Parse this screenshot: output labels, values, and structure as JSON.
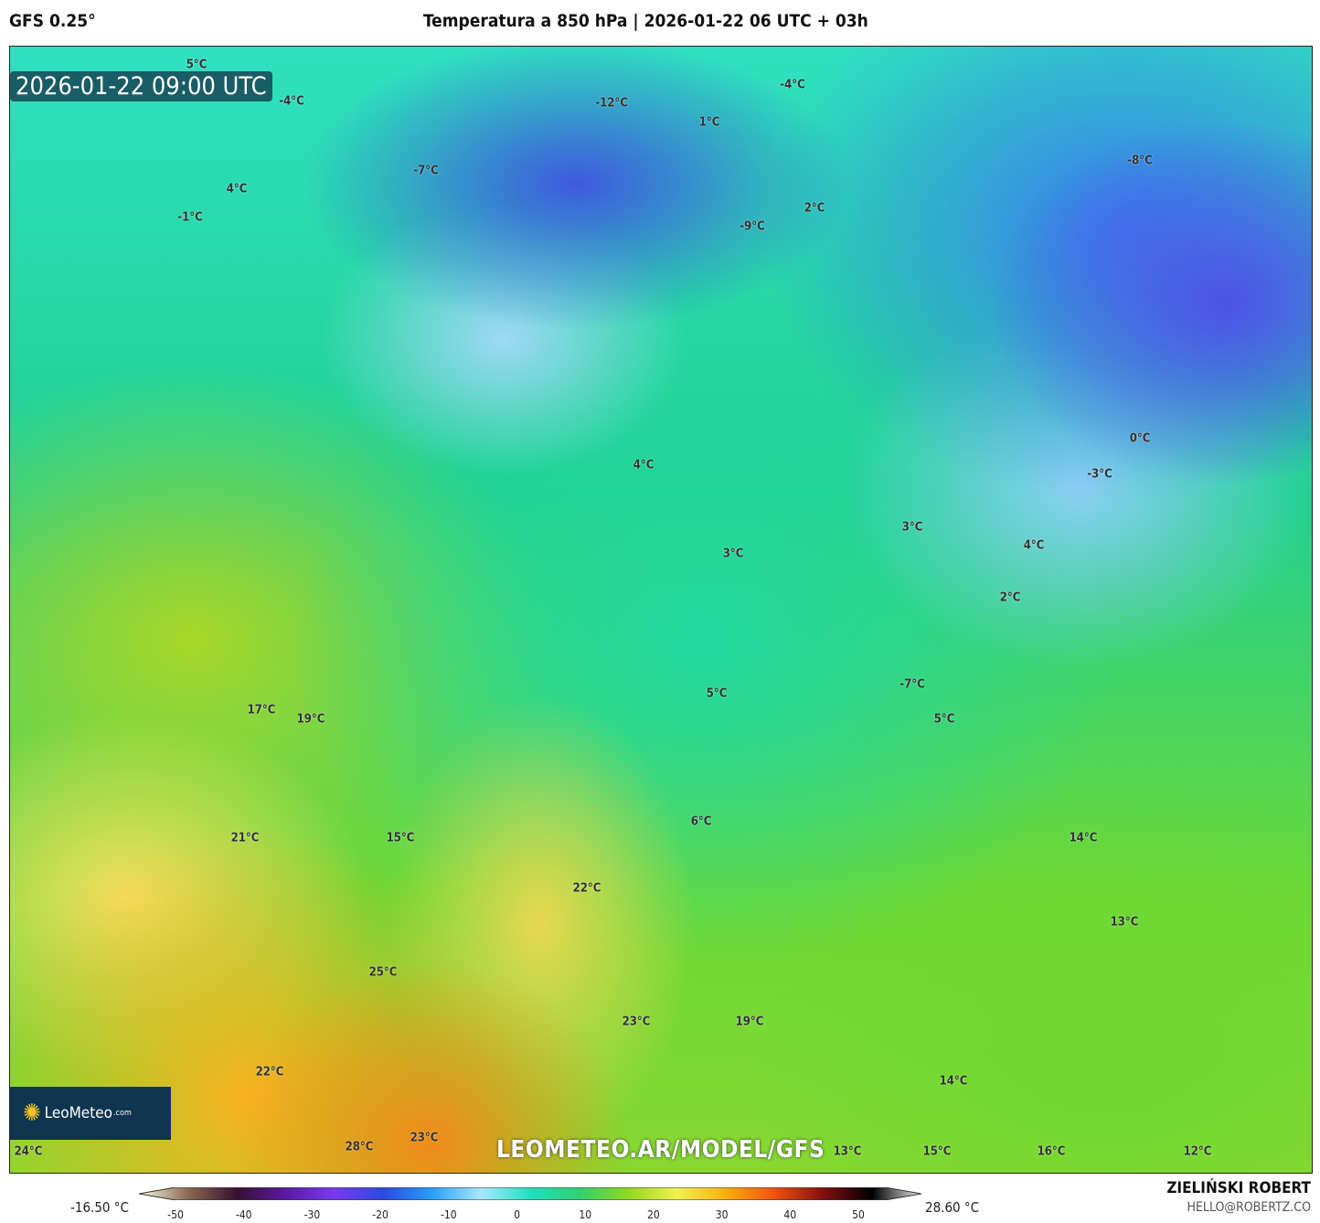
{
  "header": {
    "model": "GFS 0.25°",
    "title": "Temperatura a 850 hPa | 2026-01-22 06 UTC + 03h"
  },
  "map": {
    "valid_time": "2026-01-22 09:00 UTC",
    "watermark": "LEOMETEO.AR/MODEL/GFS",
    "logo": {
      "name": "LeoMeteo",
      "suffix": ".com"
    },
    "labels": [
      "5°C",
      "-4°C",
      "-12°C",
      "-4°C",
      "1°C",
      "-8°C",
      "-7°C",
      "4°C",
      "-1°C",
      "2°C",
      "-9°C",
      "0°C",
      "-3°C",
      "4°C",
      "3°C",
      "4°C",
      "3°C",
      "2°C",
      "-7°C",
      "5°C",
      "5°C",
      "17°C",
      "19°C",
      "6°C",
      "14°C",
      "21°C",
      "15°C",
      "22°C",
      "13°C",
      "25°C",
      "23°C",
      "19°C",
      "22°C",
      "14°C",
      "23°C",
      "28°C",
      "24°C",
      "13°C",
      "15°C",
      "16°C",
      "12°C"
    ]
  },
  "legend": {
    "min_value": "-16.50 °C",
    "max_value": "28.60 °C",
    "ticks": [
      "-50",
      "-40",
      "-30",
      "-20",
      "-10",
      "0",
      "10",
      "20",
      "30",
      "40",
      "50"
    ],
    "colors": [
      "#fdfbe8",
      "#8a6a50",
      "#3a1030",
      "#5a1aa0",
      "#7a3af0",
      "#2a4ae0",
      "#2aa0f8",
      "#a8e8ff",
      "#20e0c0",
      "#30d070",
      "#90d820",
      "#f0f050",
      "#f8b010",
      "#f05010",
      "#801010",
      "#000000",
      "#f0f0f0"
    ]
  },
  "credits": {
    "author": "ZIELIŃSKI ROBERT",
    "email": "HELLO@ROBERTZ.CO"
  }
}
